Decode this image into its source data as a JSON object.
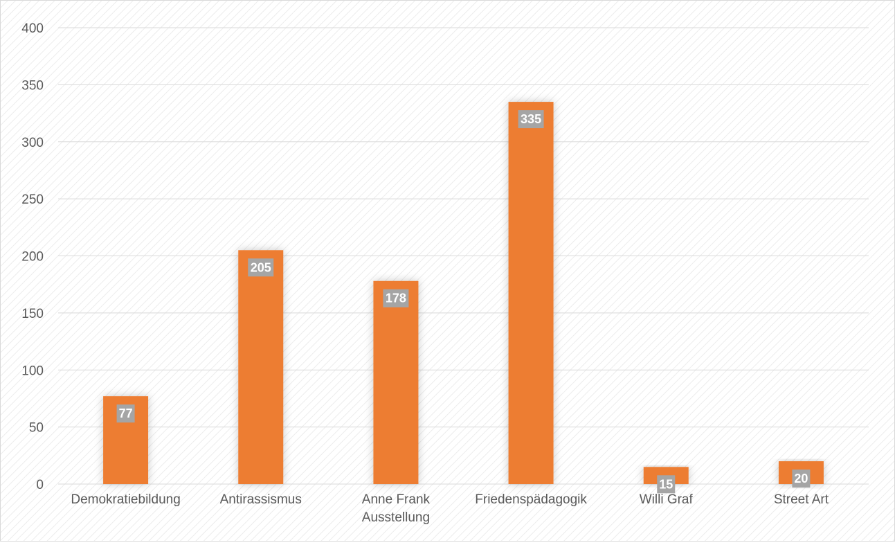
{
  "chart_data": {
    "type": "bar",
    "categories": [
      [
        "Demokratiebildung"
      ],
      [
        "Antirassismus"
      ],
      [
        "Anne Frank",
        "Ausstellung"
      ],
      [
        "Friedenspädagogik"
      ],
      [
        "Willi Graf"
      ],
      [
        "Street Art"
      ]
    ],
    "values": [
      77,
      205,
      178,
      335,
      15,
      20
    ],
    "ylim": [
      0,
      400
    ],
    "yticks": [
      0,
      50,
      100,
      150,
      200,
      250,
      300,
      350,
      400
    ],
    "grid": true,
    "legend": "none",
    "data_labels": true,
    "colors": {
      "bar": "#ED7D31",
      "label_box": "#A5A5A5",
      "gridline": "#D9D9D9",
      "axis_text": "#595959",
      "frame": "#D9D9D9",
      "hatch": "#ECECEC"
    }
  }
}
